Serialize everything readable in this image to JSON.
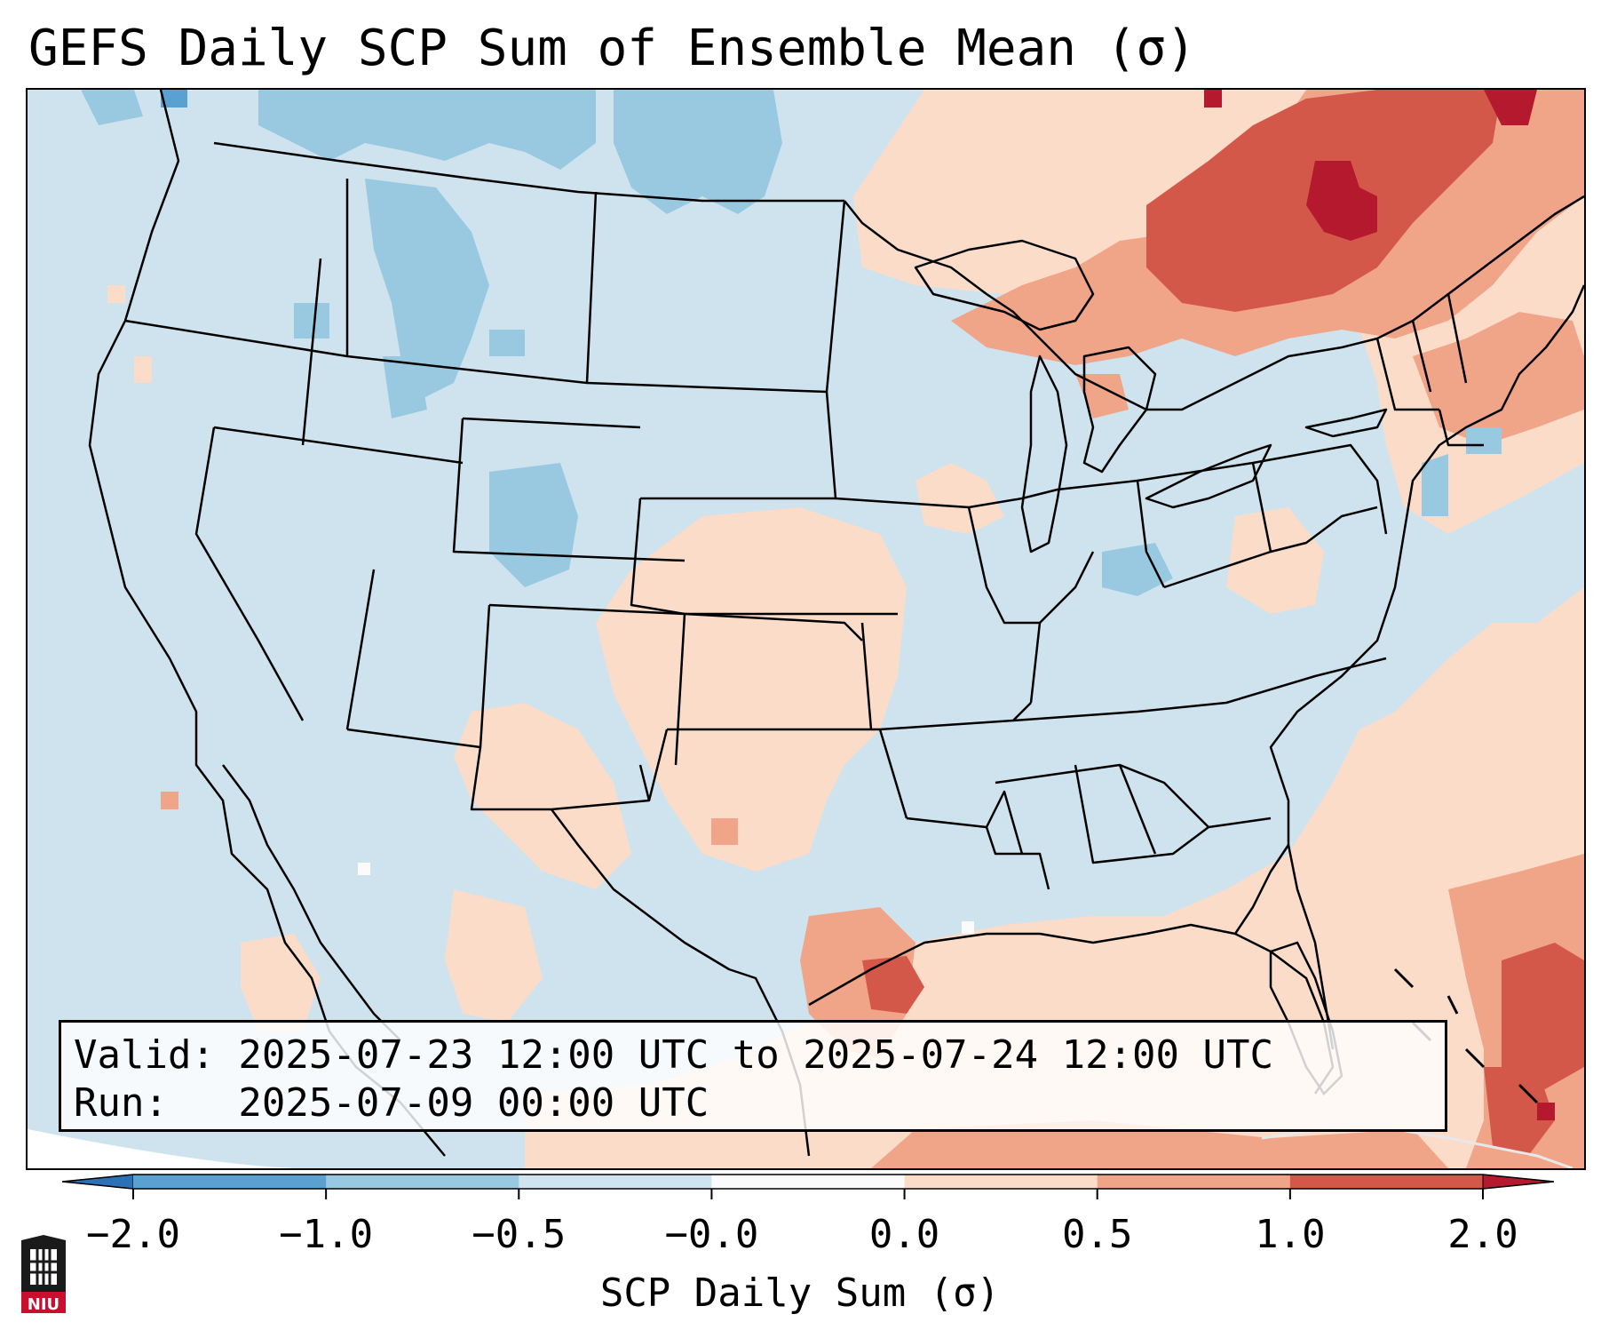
{
  "title": "GEFS Daily SCP Sum of Ensemble Mean (σ)",
  "info": {
    "valid_line": "Valid: 2025-07-23 12:00 UTC to 2025-07-24 12:00 UTC",
    "run_line": "Run:   2025-07-09 00:00 UTC"
  },
  "colorbar": {
    "label": "SCP Daily Sum (σ)",
    "ticks": [
      "−2.0",
      "−1.0",
      "−0.5",
      "−0.0",
      "0.0",
      "0.5",
      "1.0",
      "2.0"
    ],
    "colors": [
      "#2b72b5",
      "#5aa0d0",
      "#99c9e0",
      "#d0e4ef",
      "#fbfbfb",
      "#fbdcc9",
      "#f0a589",
      "#d4584a",
      "#b5192e"
    ],
    "under_color": "#2b72b5",
    "over_color": "#b5192e"
  },
  "logo": {
    "text": "NIU"
  }
}
